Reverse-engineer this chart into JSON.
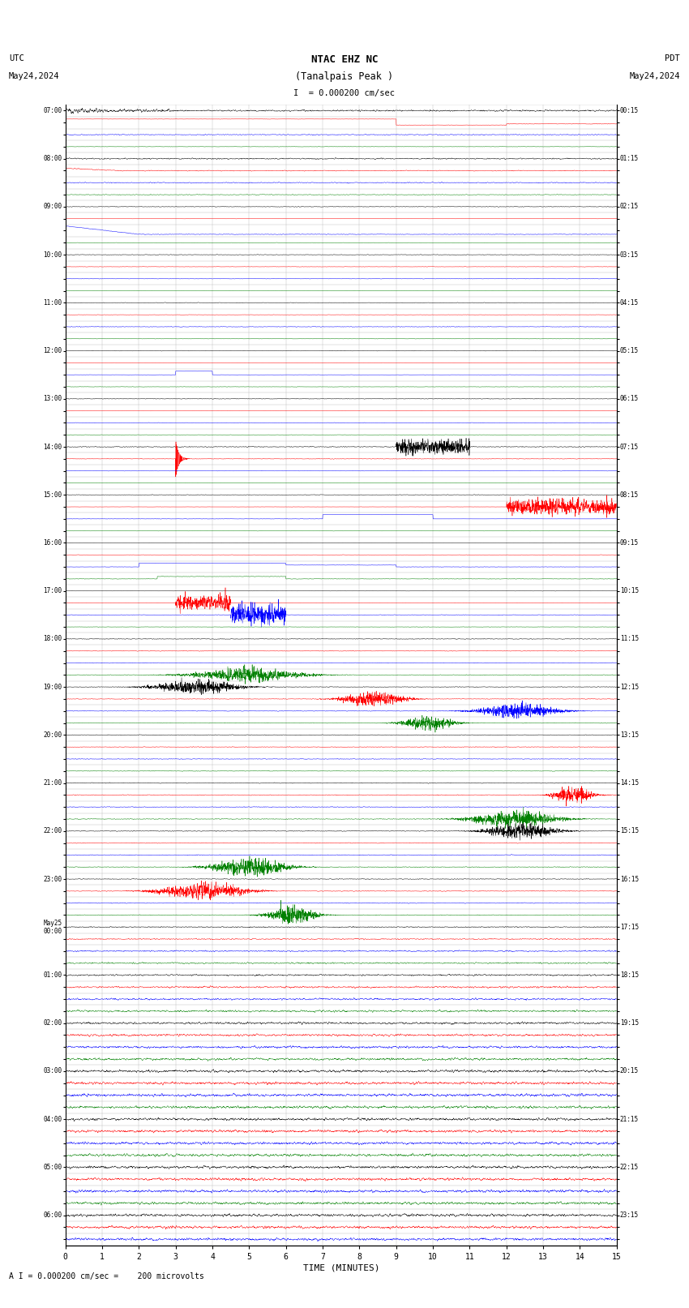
{
  "title_line1": "NTAC EHZ NC",
  "title_line2": "(Tanalpais Peak )",
  "scale_text": "I  = 0.000200 cm/sec",
  "utc_label": "UTC",
  "date_left": "May24,2024",
  "pdt_label": "PDT",
  "date_right": "May24,2024",
  "bottom_label": "TIME (MINUTES)",
  "bottom_note": "A I = 0.000200 cm/sec =    200 microvolts",
  "left_times": [
    "07:00",
    "",
    "",
    "",
    "08:00",
    "",
    "",
    "",
    "09:00",
    "",
    "",
    "",
    "10:00",
    "",
    "",
    "",
    "11:00",
    "",
    "",
    "",
    "12:00",
    "",
    "",
    "",
    "13:00",
    "",
    "",
    "",
    "14:00",
    "",
    "",
    "",
    "15:00",
    "",
    "",
    "",
    "16:00",
    "",
    "",
    "",
    "17:00",
    "",
    "",
    "",
    "18:00",
    "",
    "",
    "",
    "19:00",
    "",
    "",
    "",
    "20:00",
    "",
    "",
    "",
    "21:00",
    "",
    "",
    "",
    "22:00",
    "",
    "",
    "",
    "23:00",
    "",
    "",
    "",
    "May25\n00:00",
    "",
    "",
    "",
    "01:00",
    "",
    "",
    "",
    "02:00",
    "",
    "",
    "",
    "03:00",
    "",
    "",
    "",
    "04:00",
    "",
    "",
    "",
    "05:00",
    "",
    "",
    "",
    "06:00",
    "",
    ""
  ],
  "right_times": [
    "00:15",
    "",
    "",
    "",
    "01:15",
    "",
    "",
    "",
    "02:15",
    "",
    "",
    "",
    "03:15",
    "",
    "",
    "",
    "04:15",
    "",
    "",
    "",
    "05:15",
    "",
    "",
    "",
    "06:15",
    "",
    "",
    "",
    "07:15",
    "",
    "",
    "",
    "08:15",
    "",
    "",
    "",
    "09:15",
    "",
    "",
    "",
    "10:15",
    "",
    "",
    "",
    "11:15",
    "",
    "",
    "",
    "12:15",
    "",
    "",
    "",
    "13:15",
    "",
    "",
    "",
    "14:15",
    "",
    "",
    "",
    "15:15",
    "",
    "",
    "",
    "16:15",
    "",
    "",
    "",
    "17:15",
    "",
    "",
    "",
    "18:15",
    "",
    "",
    "",
    "19:15",
    "",
    "",
    "",
    "20:15",
    "",
    "",
    "",
    "21:15",
    "",
    "",
    "",
    "22:15",
    "",
    "",
    "",
    "23:15",
    "",
    ""
  ],
  "x_min": 0,
  "x_max": 15,
  "x_ticks": [
    0,
    1,
    2,
    3,
    4,
    5,
    6,
    7,
    8,
    9,
    10,
    11,
    12,
    13,
    14,
    15
  ],
  "colors": [
    "black",
    "red",
    "blue",
    "green"
  ],
  "bg_color": "white",
  "grid_color": "#bbbbbb",
  "fig_width": 8.5,
  "fig_height": 16.13,
  "dpi": 100
}
